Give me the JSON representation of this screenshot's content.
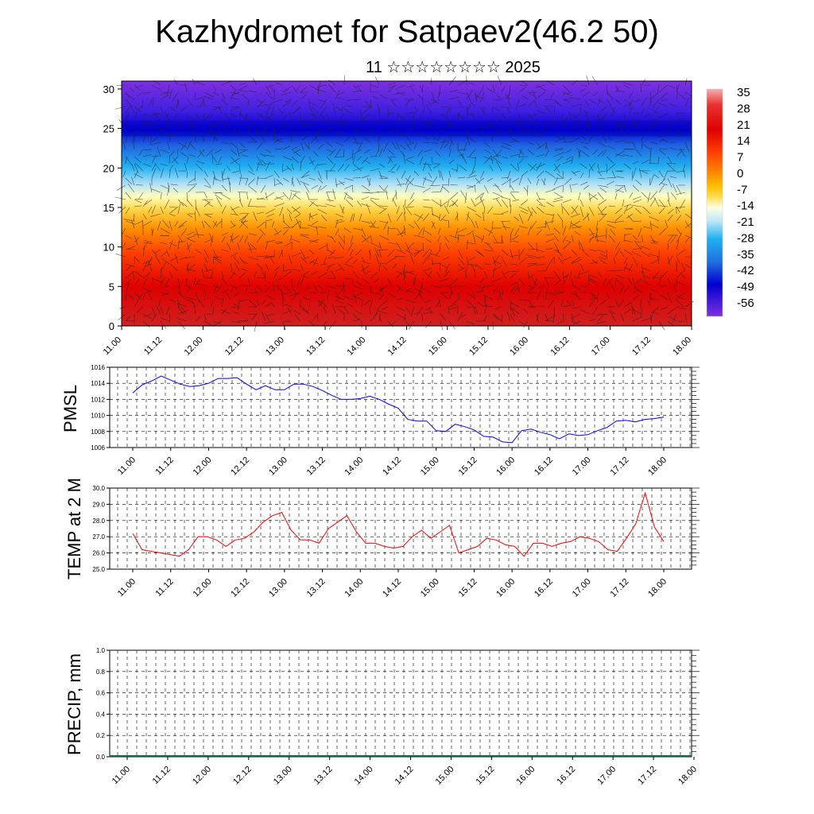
{
  "header": {
    "title": "Kazhydromet for Satpaev2(46.2 50)",
    "subtitle": "11 ☆☆☆☆☆☆☆☆ 2025"
  },
  "chart_data": [
    {
      "type": "heatmap",
      "id": "cross-section",
      "xlabel": "",
      "ylabel": "",
      "x_ticks": [
        "11.00",
        "11.12",
        "12.00",
        "12.12",
        "13.00",
        "13.12",
        "14.00",
        "14.12",
        "15.00",
        "15.12",
        "16.00",
        "16.12",
        "17.00",
        "17.12",
        "18.00"
      ],
      "y_ticks": [
        0,
        5,
        10,
        15,
        20,
        25,
        30
      ],
      "ylim": [
        0,
        31
      ],
      "overlay": "wind barbs",
      "colorbar": {
        "labels": [
          "35",
          "28",
          "21",
          "14",
          "7",
          "0",
          "-7",
          "-14",
          "-21",
          "-28",
          "-35",
          "-42",
          "-49",
          "-56"
        ],
        "colors": [
          "#f5b0b0",
          "#e83030",
          "#e00000",
          "#ff4000",
          "#ff8000",
          "#ffc000",
          "#ffe060",
          "#ffffe0",
          "#c0e8f8",
          "#20b0f0",
          "#2070e0",
          "#0000d0",
          "#4020e0",
          "#8030e0"
        ]
      }
    },
    {
      "type": "line",
      "id": "pmsl",
      "ylabel": "PMSL",
      "ylim": [
        1006,
        1016
      ],
      "y_ticks": [
        "1006",
        "1008",
        "1010",
        "1012",
        "1014",
        "1016"
      ],
      "x_ticks": [
        "11.00",
        "11.12",
        "12.00",
        "12.12",
        "13.00",
        "13.12",
        "14.00",
        "14.12",
        "15.00",
        "15.12",
        "16.00",
        "16.12",
        "17.00",
        "17.12",
        "18.00"
      ],
      "color": "#0000ff",
      "values": [
        1012.8,
        1013.8,
        1014.3,
        1014.9,
        1014.4,
        1013.9,
        1013.6,
        1013.7,
        1014.0,
        1014.6,
        1014.6,
        1014.7,
        1013.9,
        1013.2,
        1013.7,
        1013.2,
        1013.2,
        1013.9,
        1013.9,
        1013.6,
        1013.1,
        1012.5,
        1012.0,
        1012.0,
        1012.1,
        1012.4,
        1012.0,
        1011.4,
        1010.9,
        1009.5,
        1009.3,
        1009.3,
        1008.1,
        1008.0,
        1008.9,
        1008.6,
        1008.2,
        1007.4,
        1007.3,
        1006.7,
        1006.6,
        1008.1,
        1008.3,
        1007.9,
        1007.6,
        1007.1,
        1007.7,
        1007.5,
        1007.6,
        1008.1,
        1008.5,
        1009.3,
        1009.4,
        1009.2,
        1009.5,
        1009.6,
        1009.8
      ]
    },
    {
      "type": "line",
      "id": "temp",
      "ylabel": "TEMP at 2 M",
      "ylim": [
        25.0,
        30.0
      ],
      "y_ticks": [
        "25.0",
        "26.0",
        "27.0",
        "28.0",
        "29.0",
        "30.0"
      ],
      "x_ticks": [
        "11.00",
        "11.12",
        "12.00",
        "12.12",
        "13.00",
        "13.12",
        "14.00",
        "14.12",
        "15.00",
        "15.12",
        "16.00",
        "16.12",
        "17.00",
        "17.12",
        "18.00"
      ],
      "color": "#ff0000",
      "values": [
        27.2,
        26.2,
        26.1,
        26.0,
        25.9,
        25.8,
        26.2,
        27.0,
        27.0,
        26.8,
        26.4,
        26.8,
        26.9,
        27.3,
        27.9,
        28.3,
        28.5,
        27.4,
        26.8,
        26.8,
        26.6,
        27.5,
        27.9,
        28.3,
        27.3,
        26.6,
        26.6,
        26.4,
        26.3,
        26.4,
        27.0,
        27.4,
        26.9,
        27.3,
        27.7,
        26.0,
        26.2,
        26.4,
        26.9,
        26.8,
        26.5,
        26.4,
        25.8,
        26.6,
        26.6,
        26.4,
        26.6,
        26.7,
        27.0,
        26.9,
        26.7,
        26.2,
        26.1,
        26.9,
        27.8,
        29.7,
        27.6,
        26.7
      ]
    },
    {
      "type": "bar",
      "id": "precip",
      "ylabel": "PRECIP, mm",
      "ylim": [
        0.0,
        1.0
      ],
      "y_ticks": [
        "0.0",
        "0.2",
        "0.4",
        "0.6",
        "0.8",
        "1.0"
      ],
      "x_ticks": [
        "11.00",
        "11.12",
        "12.00",
        "12.12",
        "13.00",
        "13.12",
        "14.00",
        "14.12",
        "15.00",
        "15.12",
        "16.00",
        "16.12",
        "17.00",
        "17.12",
        "18.00"
      ],
      "values": [
        0,
        0,
        0,
        0,
        0,
        0,
        0,
        0,
        0,
        0,
        0,
        0,
        0,
        0,
        0,
        0,
        0,
        0,
        0,
        0,
        0,
        0,
        0,
        0,
        0,
        0,
        0,
        0,
        0,
        0,
        0,
        0,
        0,
        0,
        0,
        0,
        0,
        0,
        0,
        0,
        0,
        0,
        0,
        0,
        0,
        0,
        0,
        0,
        0,
        0,
        0,
        0,
        0,
        0,
        0,
        0,
        0
      ]
    }
  ]
}
